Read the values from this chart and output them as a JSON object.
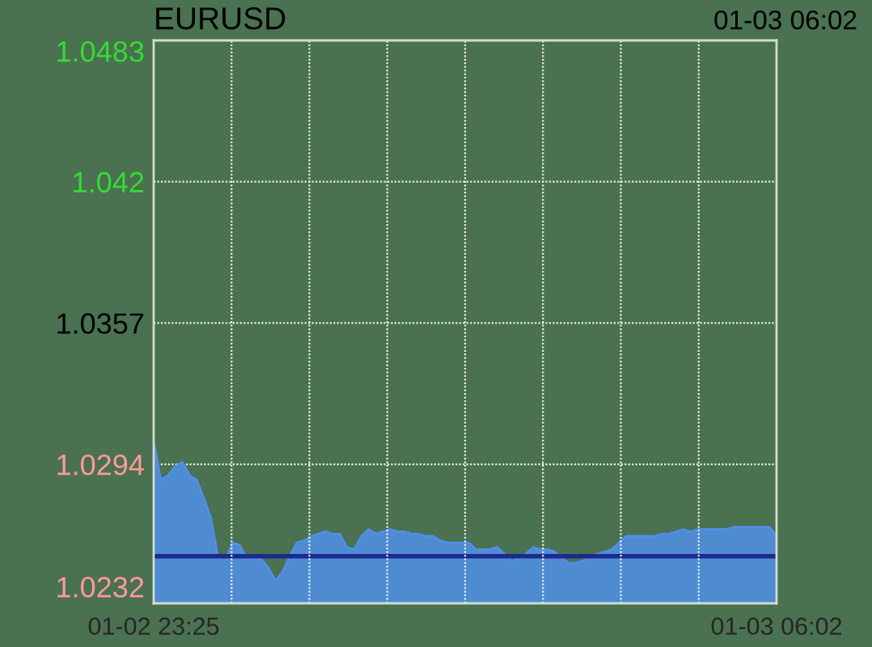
{
  "chart_data": {
    "type": "area",
    "title": "EURUSD",
    "subtitle": "01-03 06:02",
    "categories": [
      "01-02 23:25",
      null,
      null,
      null,
      null,
      null,
      null,
      null,
      null,
      null,
      null,
      null,
      null,
      null,
      null,
      null,
      null,
      null,
      null,
      null,
      null,
      null,
      null,
      null,
      null,
      null,
      null,
      null,
      null,
      null,
      null,
      null,
      null,
      null,
      null,
      null,
      null,
      null,
      null,
      null,
      null,
      null,
      null,
      null,
      null,
      null,
      null,
      null,
      null,
      null,
      null,
      null,
      null,
      null,
      null,
      null,
      null,
      null,
      null,
      null,
      null,
      null,
      null,
      null,
      null,
      null,
      null,
      null,
      null,
      null,
      null,
      null,
      null,
      null,
      null,
      null,
      null,
      null,
      null,
      null,
      null,
      null,
      null,
      null,
      null,
      null,
      null,
      "01-03 06:02"
    ],
    "series": [
      {
        "color": "#4f8fe8",
        "values": [
          1.0304,
          1.0287,
          1.0289,
          1.0293,
          1.0295,
          1.0289,
          1.0287,
          1.0279,
          1.027,
          1.0252,
          1.0251,
          1.0259,
          1.0258,
          1.0252,
          1.0252,
          1.0252,
          1.0248,
          1.0242,
          1.0246,
          1.0253,
          1.0259,
          1.026,
          1.0262,
          1.0263,
          1.0264,
          1.0263,
          1.0263,
          1.0257,
          1.0256,
          1.0262,
          1.0265,
          1.0263,
          1.0264,
          1.0265,
          1.0264,
          1.0264,
          1.0263,
          1.0263,
          1.0262,
          1.0262,
          1.026,
          1.0259,
          1.0259,
          1.0259,
          1.0259,
          1.0256,
          1.0256,
          1.0256,
          1.0257,
          1.0254,
          1.0251,
          1.0252,
          1.0254,
          1.0257,
          1.0256,
          1.0256,
          1.0255,
          1.0252,
          1.025,
          1.025,
          1.0251,
          1.0253,
          1.0254,
          1.0255,
          1.0256,
          1.0259,
          1.0262,
          1.0262,
          1.0262,
          1.0262,
          1.0262,
          1.0263,
          1.0263,
          1.0264,
          1.0265,
          1.0264,
          1.0265,
          1.0265,
          1.0265,
          1.0265,
          1.0265,
          1.0266,
          1.0266,
          1.0266,
          1.0266,
          1.0266,
          1.0266,
          1.0262
        ]
      }
    ],
    "ref_lines": [
      {
        "axis": "y",
        "value": 1.0253,
        "color": "#1c2a8c"
      }
    ],
    "ylim": [
      1.0232,
      1.0483
    ],
    "yticks": [
      1.0232,
      1.0294,
      1.0357,
      1.042,
      1.0483
    ],
    "grid": true
  }
}
